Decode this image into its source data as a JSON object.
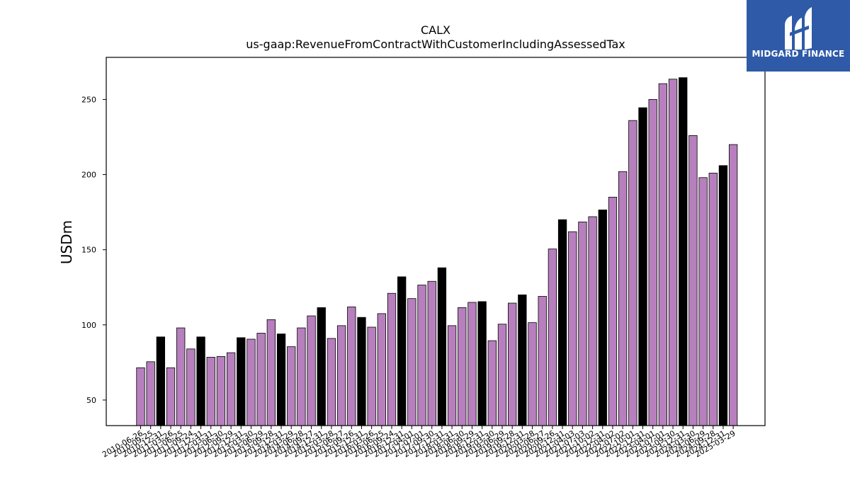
{
  "chart_data": {
    "type": "bar",
    "title": "CALX",
    "subtitle": "us-gaap:RevenueFromContractWithCustomerIncludingAssessedTax",
    "xlabel": "",
    "ylabel": "USDm",
    "ylim": [
      33,
      278
    ],
    "yticks": [
      50,
      100,
      150,
      200,
      250
    ],
    "grid": false,
    "colors": {
      "bar": "#b77fbd",
      "highlight": "#000000",
      "edge": "#000000"
    },
    "categories": [
      "2010-06-26",
      "2010-09-25",
      "2010-12-31",
      "2011-03-26",
      "2011-06-25",
      "2011-09-24",
      "2011-12-31",
      "2012-03-31",
      "2012-06-30",
      "2012-09-29",
      "2012-12-31",
      "2013-03-30",
      "2013-06-29",
      "2013-09-28",
      "2013-12-31",
      "2014-03-29",
      "2014-06-28",
      "2014-09-27",
      "2014-12-31",
      "2015-03-28",
      "2015-06-27",
      "2015-09-26",
      "2015-12-31",
      "2016-03-26",
      "2016-06-25",
      "2016-09-24",
      "2016-12-31",
      "2017-04-01",
      "2017-07-01",
      "2017-09-30",
      "2017-12-31",
      "2018-03-31",
      "2018-06-30",
      "2018-09-29",
      "2018-12-31",
      "2019-03-30",
      "2019-06-29",
      "2019-09-28",
      "2019-12-31",
      "2020-03-28",
      "2020-06-27",
      "2020-09-26",
      "2020-12-31",
      "2021-04-03",
      "2021-07-03",
      "2021-10-02",
      "2021-12-31",
      "2022-04-02",
      "2022-07-02",
      "2022-10-01",
      "2022-12-31",
      "2023-04-01",
      "2023-07-01",
      "2023-09-30",
      "2023-12-31",
      "2024-03-30",
      "2024-06-29",
      "2024-09-28",
      "2024-12-31",
      "2025-03-29"
    ],
    "xtick_labels": [
      "2010-06-26",
      "2010-09-25",
      "2010-12-31",
      "2011-03-26",
      "2011-06-25",
      "2011-09-24",
      "2011-12-31",
      "2012-03-31",
      "2012-06-30",
      "2012-09-29",
      "2012-12-31",
      "2013-03-30",
      "2013-06-29",
      "2013-09-28",
      "2013-12-31",
      "2014-03-29",
      "2014-06-28",
      "2014-09-27",
      "2014-12-31",
      "2015-03-28",
      "2015-06-27",
      "2015-09-26",
      "2015-12-31",
      "2016-03-26",
      "2016-06-25",
      "2016-09-24",
      "2016-12-31",
      "2017-04-01",
      "2017-07-01",
      "2017-09-30",
      "2017-12-31",
      "2018-03-31",
      "2018-06-30",
      "2018-09-29",
      "2018-12-31",
      "2019-03-30",
      "2019-06-29",
      "2019-09-28",
      "2019-12-31",
      "2020-03-28",
      "2020-06-27",
      "2020-09-26",
      "2020-12-31",
      "2021-04-03",
      "2021-07-03",
      "2021-10-02",
      "2021-12-31",
      "2022-04-02",
      "2022-07-02",
      "2022-10-01",
      "2022-12-31",
      "2023-04-01",
      "2023-07-01",
      "2023-09-30",
      "2023-12-31",
      "2024-03-30",
      "2024-06-29",
      "2024-09-28",
      "2024-12-31",
      "2025-03-29"
    ],
    "values": [
      71.5,
      75.5,
      92.0,
      71.5,
      98.0,
      84.0,
      92.0,
      78.5,
      79.0,
      81.5,
      91.5,
      90.5,
      94.5,
      103.5,
      94.0,
      85.5,
      98.0,
      106.0,
      111.5,
      91.0,
      99.5,
      112.0,
      105.0,
      98.5,
      107.5,
      121.0,
      132.0,
      117.5,
      126.5,
      129.0,
      138.0,
      99.5,
      111.5,
      115.0,
      115.5,
      89.5,
      100.5,
      114.5,
      120.0,
      101.5,
      119.0,
      150.5,
      170.0,
      162.0,
      168.5,
      172.0,
      176.5,
      185.0,
      202.0,
      236.0,
      244.5,
      250.0,
      260.5,
      263.5,
      264.5,
      226.0,
      198.0,
      201.0,
      206.0,
      220.0
    ],
    "highlighted_indices": [
      2,
      6,
      10,
      14,
      18,
      22,
      26,
      30,
      34,
      38,
      42,
      46,
      50,
      54,
      58
    ]
  },
  "logo": {
    "text": "MIDGARD FINANCE",
    "icon": "midgard-finance-logo-icon",
    "background": "#2f5aa8"
  }
}
